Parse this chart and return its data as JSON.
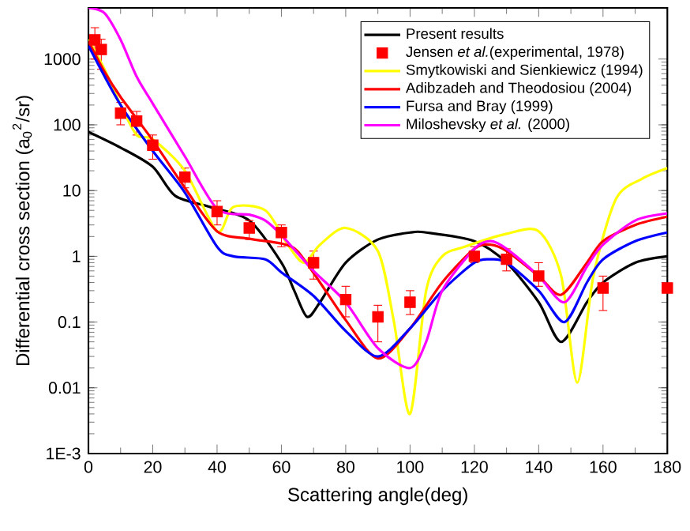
{
  "chart_data": {
    "type": "line",
    "log": "y",
    "legend": "top right",
    "xlabel": "Scattering angle(deg)",
    "ylabel": "Differential cross section (a$_{0}$$^{2}$/sr)",
    "xlim": [
      0,
      180
    ],
    "xticks": [
      0,
      20,
      40,
      60,
      80,
      100,
      120,
      140,
      160,
      180
    ],
    "ylim": [
      0.001,
      6000
    ],
    "yticks": [
      {
        "value": 0.001,
        "label": "1E-3"
      },
      0.01,
      0.1,
      1,
      10,
      100,
      1000
    ],
    "series": [
      {
        "name": "Present results",
        "color": "#000000",
        "x": [
          0,
          10,
          20,
          27,
          38,
          50,
          60,
          64,
          68,
          72,
          80,
          90,
          100,
          105,
          120,
          130,
          140,
          147,
          155,
          160,
          170,
          180
        ],
        "values": [
          78,
          45,
          23,
          8.3,
          5.6,
          3.5,
          0.8,
          0.3,
          0.12,
          0.2,
          0.8,
          1.8,
          2.3,
          2.3,
          1.7,
          0.8,
          0.2,
          0.05,
          0.2,
          0.4,
          0.8,
          1.0
        ]
      },
      {
        "name": "Jensen *et al.*(experimental, 1978)",
        "type": "scatter",
        "marker": "square",
        "color": "#ff0000",
        "x": [
          2,
          4,
          10,
          15,
          20,
          30,
          40,
          50,
          60,
          70,
          80,
          90,
          100,
          120,
          130,
          140,
          160,
          180
        ],
        "values": [
          1960,
          1400,
          150,
          114,
          49,
          16,
          4.8,
          2.7,
          2.3,
          0.8,
          0.22,
          0.12,
          0.2,
          1.0,
          0.9,
          0.5,
          0.33,
          0.33
        ],
        "errors": [
          [
            1000,
            3000
          ],
          [
            700,
            2000
          ],
          [
            100,
            220
          ],
          [
            70,
            160
          ],
          [
            30,
            70
          ],
          [
            11,
            22
          ],
          [
            3,
            7
          ],
          [
            1.8,
            3.5
          ],
          [
            1.4,
            3
          ],
          [
            0.45,
            1.2
          ],
          [
            0.12,
            0.35
          ],
          [
            0.05,
            0.18
          ],
          [
            0.13,
            0.3
          ],
          [
            0.8,
            1.4
          ],
          [
            0.6,
            1.3
          ],
          [
            0.35,
            0.8
          ],
          [
            0.15,
            0.5
          ],
          null
        ]
      },
      {
        "name": "Smytkowiski and Sienkiewicz (1994)",
        "color": "#ffff00",
        "x": [
          0,
          5,
          10,
          15,
          20,
          30,
          40,
          45,
          55,
          62,
          67,
          72,
          80,
          90,
          95,
          100,
          105,
          110,
          117,
          130,
          140,
          147,
          152,
          157,
          164,
          172,
          180
        ],
        "values": [
          2000,
          700,
          200,
          70,
          60,
          20,
          2.4,
          5.6,
          5,
          1.5,
          0.8,
          1.5,
          2.7,
          1.2,
          0.1,
          0.004,
          0.3,
          1,
          1.4,
          2.2,
          2.4,
          0.5,
          0.012,
          0.5,
          7.4,
          15,
          22
        ]
      },
      {
        "name": "Adibzadeh and Theodosiou (2004)",
        "color": "#ff0000",
        "x": [
          0,
          5,
          10,
          20,
          30,
          40,
          50,
          60,
          65,
          72,
          80,
          90,
          100,
          110,
          120,
          125,
          130,
          140,
          147,
          155,
          160,
          170,
          180
        ],
        "values": [
          1860,
          640,
          265,
          58,
          11,
          2.4,
          1.85,
          1.56,
          1.2,
          0.4,
          0.107,
          0.028,
          0.08,
          0.4,
          1.3,
          1.5,
          1.2,
          0.5,
          0.26,
          0.8,
          1.7,
          3,
          4
        ]
      },
      {
        "name": "Fursa and Bray (1999)",
        "color": "#0000ff",
        "x": [
          0,
          10,
          20,
          30,
          40,
          45,
          55,
          60,
          70,
          80,
          90,
          100,
          110,
          120,
          125,
          130,
          140,
          148,
          155,
          160,
          170,
          180
        ],
        "values": [
          1600,
          200,
          40,
          9.3,
          1.4,
          1.0,
          0.9,
          0.57,
          0.25,
          0.073,
          0.03,
          0.08,
          0.3,
          0.8,
          0.9,
          0.8,
          0.3,
          0.1,
          0.4,
          0.9,
          1.7,
          2.3
        ]
      },
      {
        "name": "Miloshevsky *et al.* (2000)",
        "color": "#ff00ff",
        "x": [
          0,
          5,
          10,
          15,
          20,
          30,
          40,
          50,
          55,
          60,
          70,
          80,
          90,
          100,
          105,
          110,
          120,
          125,
          130,
          140,
          148,
          155,
          160,
          170,
          180
        ],
        "values": [
          6000,
          5000,
          1970,
          540,
          210,
          33,
          5.3,
          4.3,
          3.5,
          2.1,
          0.6,
          0.2,
          0.04,
          0.02,
          0.05,
          0.3,
          1.3,
          1.7,
          1.3,
          0.5,
          0.2,
          0.7,
          1.5,
          3.5,
          4.5
        ]
      }
    ]
  }
}
